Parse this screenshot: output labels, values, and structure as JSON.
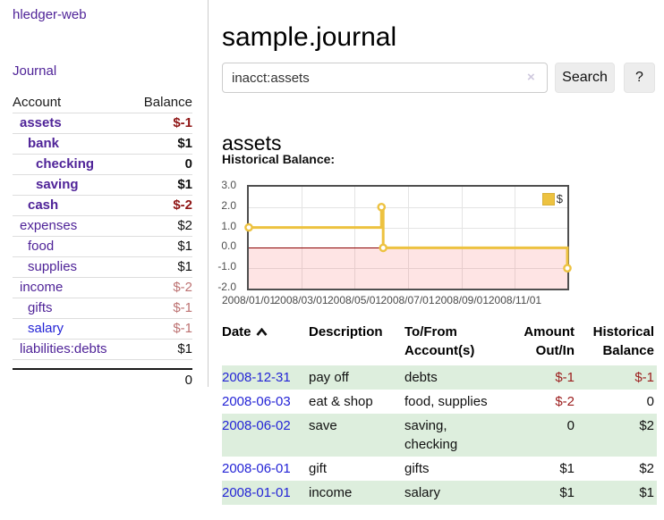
{
  "colors": {
    "purple": "#4f2398",
    "blue": "#2424d6",
    "maroon": "#8f1515",
    "maroon2": "#9b1c1c",
    "dimred": "#bd7272",
    "rowgreen": "#ddeedd",
    "row_border": "#dddddd",
    "divider": "#cccccc",
    "input_border": "#cccccc",
    "btn_bg": "#ededed",
    "chart_border": "#4f4f4f",
    "grid": "#e4e4e4",
    "negzone": "rgba(248,90,90,0.16)",
    "zeroline": "#8b0000",
    "series": "#edc240"
  },
  "sidebar": {
    "brand": "hledger-web",
    "nav": "Journal",
    "table": {
      "headers": {
        "account": "Account",
        "balance": "Balance"
      },
      "rows": [
        {
          "name": "assets",
          "balance": "$-1",
          "level": 1,
          "bold": true,
          "negative": true,
          "dim": false,
          "blue": false
        },
        {
          "name": "bank",
          "balance": "$1",
          "level": 2,
          "bold": true,
          "negative": false,
          "dim": false,
          "blue": false
        },
        {
          "name": "checking",
          "balance": "0",
          "level": 3,
          "bold": true,
          "negative": false,
          "dim": false,
          "blue": false
        },
        {
          "name": "saving",
          "balance": "$1",
          "level": 3,
          "bold": true,
          "negative": false,
          "dim": false,
          "blue": false
        },
        {
          "name": "cash",
          "balance": "$-2",
          "level": 2,
          "bold": true,
          "negative": true,
          "dim": false,
          "blue": false
        },
        {
          "name": "expenses",
          "balance": "$2",
          "level": 1,
          "bold": false,
          "negative": false,
          "dim": false,
          "blue": false
        },
        {
          "name": "food",
          "balance": "$1",
          "level": 2,
          "bold": false,
          "negative": false,
          "dim": false,
          "blue": false
        },
        {
          "name": "supplies",
          "balance": "$1",
          "level": 2,
          "bold": false,
          "negative": false,
          "dim": false,
          "blue": false
        },
        {
          "name": "income",
          "balance": "$-2",
          "level": 1,
          "bold": false,
          "negative": true,
          "dim": true,
          "blue": false
        },
        {
          "name": "gifts",
          "balance": "$-1",
          "level": 2,
          "bold": false,
          "negative": true,
          "dim": true,
          "blue": false
        },
        {
          "name": "salary",
          "balance": "$-1",
          "level": 2,
          "bold": false,
          "negative": true,
          "dim": true,
          "blue": true
        },
        {
          "name": "liabilities:debts",
          "balance": "$1",
          "level": 1,
          "bold": false,
          "negative": false,
          "dim": false,
          "blue": false
        }
      ],
      "total": "0"
    }
  },
  "main": {
    "title": "sample.journal",
    "search": {
      "value": "inacct:assets",
      "clear_icon": "×",
      "button": "Search",
      "help": "?"
    },
    "account_heading": "assets",
    "chart_label": "Historical Balance:"
  },
  "chart_data": {
    "type": "line",
    "step": true,
    "title": "Historical Balance",
    "x_start": "2008/01/01",
    "x_end": "2008/12/31",
    "x_ticks": [
      "2008/01/01",
      "2008/03/01",
      "2008/05/01",
      "2008/07/01",
      "2008/09/01",
      "2008/11/01"
    ],
    "y_ticks": [
      3.0,
      2.0,
      1.0,
      0.0,
      -1.0,
      -2.0
    ],
    "ylim": [
      -2,
      3
    ],
    "grid": true,
    "legend_position": "top-right",
    "series": [
      {
        "name": "$",
        "color": "#edc240",
        "points": [
          [
            "2008/01/01",
            1
          ],
          [
            "2008/06/01",
            2
          ],
          [
            "2008/06/03",
            0
          ],
          [
            "2008/12/31",
            -1
          ]
        ]
      }
    ]
  },
  "register": {
    "headers": {
      "date": "Date",
      "description": "Description",
      "accounts": "To/From Account(s)",
      "amount": "Amount Out/In",
      "balance": "Historical Balance"
    },
    "rows": [
      {
        "date": "2008-12-31",
        "description": "pay off",
        "accounts": "debts",
        "amount": "$-1",
        "balance": "$-1",
        "amount_negative": true,
        "balance_negative": true,
        "shaded": true
      },
      {
        "date": "2008-06-03",
        "description": "eat & shop",
        "accounts": "food, supplies",
        "amount": "$-2",
        "balance": "0",
        "amount_negative": true,
        "balance_negative": false,
        "shaded": false
      },
      {
        "date": "2008-06-02",
        "description": "save",
        "accounts": "saving, checking",
        "amount": "0",
        "balance": "$2",
        "amount_negative": false,
        "balance_negative": false,
        "shaded": true
      },
      {
        "date": "2008-06-01",
        "description": "gift",
        "accounts": "gifts",
        "amount": "$1",
        "balance": "$2",
        "amount_negative": false,
        "balance_negative": false,
        "shaded": false
      },
      {
        "date": "2008-01-01",
        "description": "income",
        "accounts": "salary",
        "amount": "$1",
        "balance": "$1",
        "amount_negative": false,
        "balance_negative": false,
        "shaded": true
      }
    ]
  }
}
